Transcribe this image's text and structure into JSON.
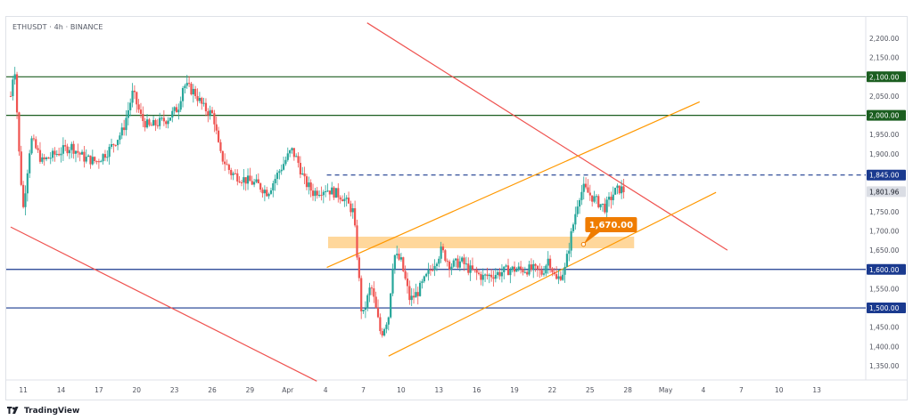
{
  "header": {
    "symbol": "ETHUSDT · 4h · BINANCE"
  },
  "footer": {
    "brand": "TradingView"
  },
  "colors": {
    "up": "#26a69a",
    "down": "#ef5350",
    "green_level": "#1b5e20",
    "blue_level": "#1a3a8f",
    "channel": "#ff9800",
    "trend": "#ef5350",
    "accent": "#ef7c00",
    "price_tag": "#dadde4"
  },
  "chart_data": {
    "type": "candlestick",
    "symbol": "ETHUSDT",
    "timeframe": "4h",
    "exchange": "BINANCE",
    "ylim": [
      1300,
      2250
    ],
    "y_ticks": [
      1350,
      1400,
      1450,
      1500,
      1550,
      1600,
      1650,
      1700,
      1750,
      1800,
      1850,
      1900,
      1950,
      2000,
      2050,
      2100,
      2150,
      2200
    ],
    "y_tick_labels": [
      "1,350.00",
      "1,400.00",
      "1,450.00",
      "1,500.00",
      "1,550.00",
      "1,600.00",
      "1,650.00",
      "1,700.00",
      "1,750.00",
      "1,800.00",
      "1,850.00",
      "1,900.00",
      "1,950.00",
      "2,000.00",
      "2,050.00",
      "2,100.00",
      "2,150.00",
      "2,200.00"
    ],
    "x_domain": [
      10,
      63.8
    ],
    "x_ticks": [
      {
        "day": 11,
        "label": "11"
      },
      {
        "day": 14,
        "label": "14"
      },
      {
        "day": 17,
        "label": "17"
      },
      {
        "day": 20,
        "label": "20"
      },
      {
        "day": 23,
        "label": "23"
      },
      {
        "day": 26,
        "label": "26"
      },
      {
        "day": 29,
        "label": "29"
      },
      {
        "day": 32,
        "label": "Apr"
      },
      {
        "day": 35,
        "label": "4"
      },
      {
        "day": 38,
        "label": "7"
      },
      {
        "day": 41,
        "label": "10"
      },
      {
        "day": 44,
        "label": "13"
      },
      {
        "day": 47,
        "label": "16"
      },
      {
        "day": 50,
        "label": "19"
      },
      {
        "day": 53,
        "label": "22"
      },
      {
        "day": 56,
        "label": "25"
      },
      {
        "day": 59,
        "label": "28"
      },
      {
        "day": 62,
        "label": "May"
      },
      {
        "day": 65,
        "label": "4"
      },
      {
        "day": 68,
        "label": "7"
      },
      {
        "day": 71,
        "label": "10"
      },
      {
        "day": 74,
        "label": "13"
      }
    ],
    "x_unit": "days from Mar 0",
    "levels": [
      {
        "name": "resistance-2100",
        "value": 2100,
        "label": "2,100.00",
        "color": "#1b5e20",
        "style": "solid"
      },
      {
        "name": "resistance-2000",
        "value": 2000,
        "label": "2,000.00",
        "color": "#1b5e20",
        "style": "solid"
      },
      {
        "name": "resistance-1845",
        "value": 1845,
        "label": "1,845.00",
        "color": "#1a3a8f",
        "style": "dashed"
      },
      {
        "name": "support-1600",
        "value": 1600,
        "label": "1,600.00",
        "color": "#1a3a8f",
        "style": "solid"
      },
      {
        "name": "support-1500",
        "value": 1500,
        "label": "1,500.00",
        "color": "#1a3a8f",
        "style": "solid"
      }
    ],
    "last_price": {
      "value": 1801.96,
      "label": "1,801.96"
    },
    "zone": {
      "low": 1655,
      "high": 1685,
      "x_start": 35.2,
      "x_end": 59.5,
      "label": "1,670.00"
    },
    "trendlines": [
      {
        "name": "descending-trendline-upper",
        "color": "#ef5350",
        "points": [
          [
            38.3,
            2240
          ],
          [
            66.9,
            1650
          ]
        ]
      },
      {
        "name": "descending-trendline-lower",
        "color": "#ef5350",
        "points": [
          [
            10.0,
            1710
          ],
          [
            34.3,
            1310
          ]
        ]
      },
      {
        "name": "channel-upper",
        "color": "#ff9800",
        "points": [
          [
            35.1,
            1605
          ],
          [
            64.7,
            2035
          ]
        ]
      },
      {
        "name": "channel-lower",
        "color": "#ff9800",
        "points": [
          [
            40.0,
            1375
          ],
          [
            66.0,
            1800
          ]
        ]
      }
    ],
    "candles_anchor_path": [
      [
        10.0,
        2050
      ],
      [
        10.3,
        2140
      ],
      [
        10.7,
        1880
      ],
      [
        11.0,
        1760
      ],
      [
        11.6,
        1940
      ],
      [
        12.5,
        1880
      ],
      [
        13.6,
        1900
      ],
      [
        14.8,
        1920
      ],
      [
        15.8,
        1890
      ],
      [
        16.8,
        1880
      ],
      [
        17.8,
        1910
      ],
      [
        18.9,
        1960
      ],
      [
        19.7,
        2060
      ],
      [
        20.4,
        1990
      ],
      [
        21.0,
        1970
      ],
      [
        22.4,
        1990
      ],
      [
        23.3,
        2020
      ],
      [
        23.7,
        2080
      ],
      [
        24.6,
        2060
      ],
      [
        25.3,
        2020
      ],
      [
        26.1,
        2000
      ],
      [
        26.6,
        1900
      ],
      [
        27.5,
        1850
      ],
      [
        28.8,
        1830
      ],
      [
        29.6,
        1820
      ],
      [
        30.4,
        1800
      ],
      [
        31.4,
        1860
      ],
      [
        32.3,
        1910
      ],
      [
        32.8,
        1880
      ],
      [
        33.3,
        1830
      ],
      [
        34.0,
        1800
      ],
      [
        35.0,
        1810
      ],
      [
        36.3,
        1790
      ],
      [
        37.2,
        1750
      ],
      [
        37.5,
        1640
      ],
      [
        37.9,
        1470
      ],
      [
        38.6,
        1560
      ],
      [
        39.4,
        1430
      ],
      [
        40.0,
        1480
      ],
      [
        40.4,
        1640
      ],
      [
        41.0,
        1620
      ],
      [
        41.7,
        1520
      ],
      [
        42.3,
        1540
      ],
      [
        43.0,
        1580
      ],
      [
        44.2,
        1650
      ],
      [
        44.9,
        1610
      ],
      [
        45.8,
        1620
      ],
      [
        46.4,
        1600
      ],
      [
        47.5,
        1580
      ],
      [
        48.7,
        1590
      ],
      [
        49.6,
        1600
      ],
      [
        50.5,
        1600
      ],
      [
        51.5,
        1600
      ],
      [
        52.2,
        1590
      ],
      [
        52.7,
        1630
      ],
      [
        53.3,
        1570
      ],
      [
        54.0,
        1600
      ],
      [
        54.5,
        1690
      ],
      [
        55.1,
        1790
      ],
      [
        55.5,
        1810
      ],
      [
        56.4,
        1780
      ],
      [
        57.2,
        1760
      ],
      [
        57.9,
        1800
      ],
      [
        58.4,
        1810
      ],
      [
        58.8,
        1802
      ]
    ]
  }
}
